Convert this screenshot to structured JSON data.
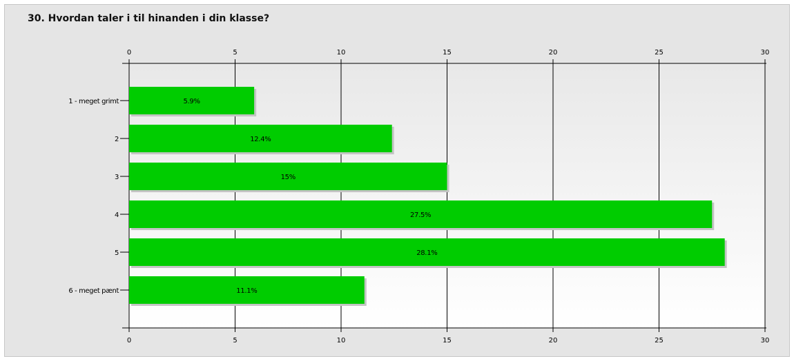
{
  "title": "30. Hvordan taler i til hinanden i din klasse?",
  "chart_data": {
    "type": "bar",
    "orientation": "horizontal",
    "title": "30. Hvordan taler i til hinanden i din klasse?",
    "categories": [
      "1 - meget grimt",
      "2",
      "3",
      "4",
      "5",
      "6 - meget pænt"
    ],
    "values": [
      5.9,
      12.4,
      15,
      27.5,
      28.1,
      11.1
    ],
    "value_labels": [
      "5.9%",
      "12.4%",
      "15%",
      "27.5%",
      "28.1%",
      "11.1%"
    ],
    "xlim": [
      0,
      30
    ],
    "xticks": [
      0,
      5,
      10,
      15,
      20,
      25,
      30
    ],
    "xtick_labels": [
      "0",
      "5",
      "10",
      "15",
      "20",
      "25",
      "30"
    ],
    "grid": true,
    "bar_color": "#00cc00",
    "bar_shadow_color": "#c4c4c4",
    "plot_background_top": "#e8e8e8",
    "plot_background_bottom": "#ffffff"
  }
}
